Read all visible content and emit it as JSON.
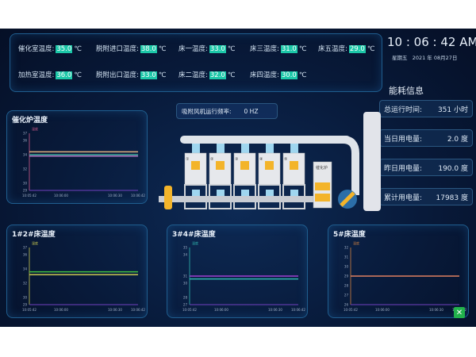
{
  "temperatures": [
    {
      "label": "催化室温度:",
      "value": "35.0",
      "unit": "℃"
    },
    {
      "label": "脱附进口温度:",
      "value": "38.0",
      "unit": "℃"
    },
    {
      "label": "床一温度:",
      "value": "33.0",
      "unit": "℃"
    },
    {
      "label": "床三温度:",
      "value": "31.0",
      "unit": "℃"
    },
    {
      "label": "床五温度:",
      "value": "29.0",
      "unit": "℃"
    },
    {
      "label": "加热室温度:",
      "value": "36.0",
      "unit": "℃"
    },
    {
      "label": "脱附出口温度:",
      "value": "33.0",
      "unit": "℃"
    },
    {
      "label": "床二温度:",
      "value": "32.0",
      "unit": "℃"
    },
    {
      "label": "床四温度:",
      "value": "30.0",
      "unit": "℃"
    }
  ],
  "clock": {
    "time": "10 : 06 : 42 AM",
    "weekday": "星期五",
    "date": "2021 年 08月27日"
  },
  "energy": {
    "title": "能耗信息",
    "items": [
      {
        "label": "总运行时间:",
        "value": "351 小时"
      },
      {
        "label": "当日用电量:",
        "value": "2.0 度"
      },
      {
        "label": "昨日用电量:",
        "value": "190.0 度"
      },
      {
        "label": "累计用电量:",
        "value": "17983 度"
      }
    ]
  },
  "fan": {
    "label": "吸附风机运行频率:",
    "value": "0 HZ"
  },
  "diagram": {
    "furnace_label": "催化炉",
    "bed_numbers": [
      "①",
      "②",
      "③",
      "④",
      "⑤"
    ]
  },
  "colors": {
    "accent": "#1cc7a8",
    "background": "#081a3a",
    "frame": "#1f5d8e"
  },
  "close_icon": "close-icon",
  "chart_data": [
    {
      "type": "line",
      "title": "催化炉温度",
      "ylabel": "温度",
      "ylim": [
        29,
        37
      ],
      "yticks": [
        29,
        30,
        32,
        34,
        36,
        37
      ],
      "xticks": [
        "10:05:42",
        "10:06:00",
        "10:06:30",
        "10:06:42"
      ],
      "axis_color": "#d05a8a",
      "series": [
        {
          "color": "#e0b080",
          "values": [
            34.4,
            34.4
          ]
        },
        {
          "color": "#3aa89a",
          "values": [
            34.0,
            34.0
          ]
        },
        {
          "color": "#b070c0",
          "values": [
            33.8,
            33.8
          ]
        }
      ]
    },
    {
      "type": "line",
      "title": "1#2#床温度",
      "ylabel": "温度",
      "ylim": [
        29,
        37
      ],
      "yticks": [
        29,
        30,
        32,
        34,
        36,
        37
      ],
      "xticks": [
        "10:05:42",
        "10:06:00",
        "10:06:30",
        "10:06:42"
      ],
      "axis_color": "#c8c850",
      "series": [
        {
          "color": "#40c040",
          "values": [
            33.6,
            33.6
          ]
        },
        {
          "color": "#c8c850",
          "values": [
            33.2,
            33.2
          ]
        }
      ]
    },
    {
      "type": "line",
      "title": "3#4#床温度",
      "ylabel": "温度",
      "ylim": [
        27,
        35
      ],
      "yticks": [
        27,
        28,
        30,
        31,
        34,
        35
      ],
      "xticks": [
        "10:05:42",
        "10:06:00",
        "10:06:30",
        "10:06:42"
      ],
      "axis_color": "#30b8b0",
      "series": [
        {
          "color": "#a040d0",
          "values": [
            31.0,
            31.0
          ]
        },
        {
          "color": "#30b8b0",
          "values": [
            30.6,
            30.6
          ]
        }
      ]
    },
    {
      "type": "line",
      "title": "5#床温度",
      "ylabel": "温度",
      "ylim": [
        26,
        32
      ],
      "yticks": [
        26,
        27,
        28,
        29,
        30,
        31,
        32
      ],
      "xticks": [
        "10:05:42",
        "10:06:00",
        "10:06:30",
        "10:06:42"
      ],
      "axis_color": "#d08040",
      "series": [
        {
          "color": "#e08060",
          "values": [
            29.0,
            29.0
          ]
        }
      ]
    }
  ]
}
